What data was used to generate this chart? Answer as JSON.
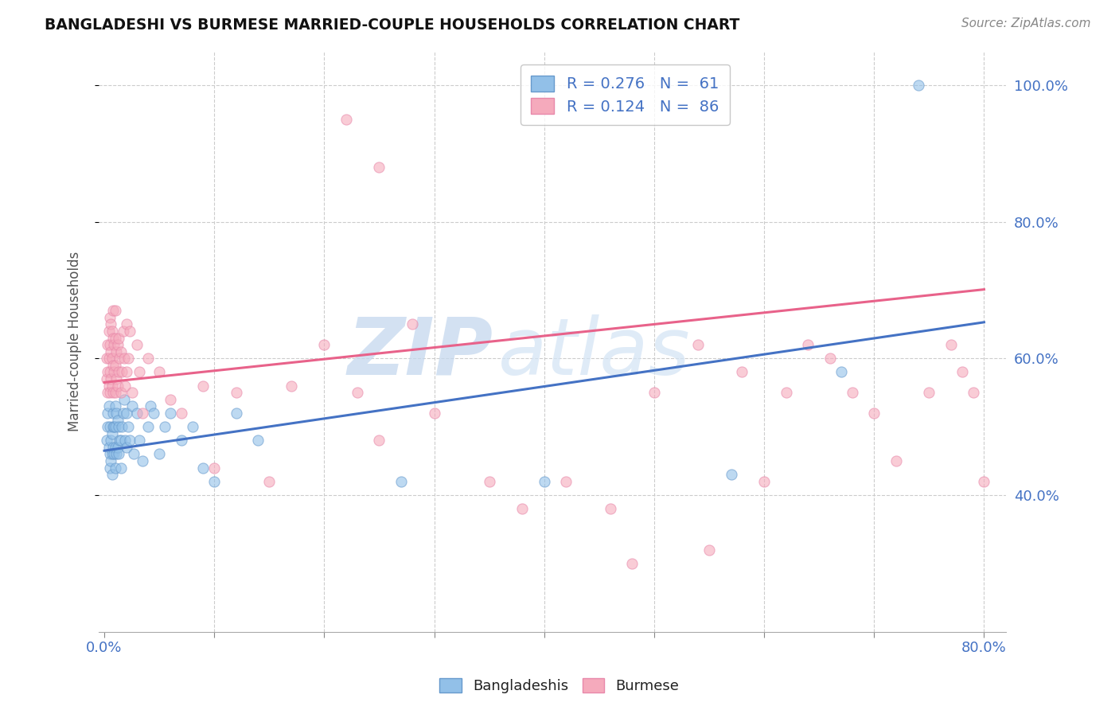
{
  "title": "BANGLADESHI VS BURMESE MARRIED-COUPLE HOUSEHOLDS CORRELATION CHART",
  "source": "Source: ZipAtlas.com",
  "ylabel": "Married-couple Households",
  "xlim": [
    -0.005,
    0.82
  ],
  "ylim": [
    0.2,
    1.05
  ],
  "blue_color": "#92C0E8",
  "blue_edge": "#6699CC",
  "pink_color": "#F5AABC",
  "pink_edge": "#E888AA",
  "line_blue": "#4472C4",
  "line_pink": "#E8628A",
  "grid_color": "#CCCCCC",
  "tick_color": "#4472C4",
  "ylabel_color": "#555555",
  "title_color": "#111111",
  "source_color": "#888888",
  "watermark_zip_color": "#C5D8EE",
  "watermark_atlas_color": "#D5E5F5",
  "blue_line_intercept": 0.465,
  "blue_line_slope": 0.235,
  "pink_line_intercept": 0.565,
  "pink_line_slope": 0.17,
  "blue_x": [
    0.002,
    0.003,
    0.003,
    0.004,
    0.004,
    0.005,
    0.005,
    0.005,
    0.006,
    0.006,
    0.007,
    0.007,
    0.007,
    0.008,
    0.008,
    0.008,
    0.009,
    0.009,
    0.01,
    0.01,
    0.01,
    0.01,
    0.011,
    0.011,
    0.012,
    0.012,
    0.013,
    0.013,
    0.014,
    0.015,
    0.015,
    0.016,
    0.017,
    0.018,
    0.019,
    0.02,
    0.02,
    0.022,
    0.023,
    0.025,
    0.027,
    0.03,
    0.032,
    0.035,
    0.04,
    0.042,
    0.045,
    0.05,
    0.055,
    0.06,
    0.07,
    0.08,
    0.09,
    0.1,
    0.12,
    0.14,
    0.27,
    0.4,
    0.57,
    0.67,
    0.74
  ],
  "blue_y": [
    0.48,
    0.5,
    0.52,
    0.47,
    0.53,
    0.44,
    0.46,
    0.5,
    0.45,
    0.48,
    0.43,
    0.46,
    0.49,
    0.47,
    0.5,
    0.52,
    0.46,
    0.5,
    0.44,
    0.47,
    0.5,
    0.53,
    0.46,
    0.52,
    0.47,
    0.51,
    0.46,
    0.5,
    0.48,
    0.44,
    0.48,
    0.5,
    0.52,
    0.54,
    0.48,
    0.47,
    0.52,
    0.5,
    0.48,
    0.53,
    0.46,
    0.52,
    0.48,
    0.45,
    0.5,
    0.53,
    0.52,
    0.46,
    0.5,
    0.52,
    0.48,
    0.5,
    0.44,
    0.42,
    0.52,
    0.48,
    0.42,
    0.42,
    0.43,
    0.58,
    1.0
  ],
  "pink_x": [
    0.002,
    0.002,
    0.003,
    0.003,
    0.003,
    0.004,
    0.004,
    0.004,
    0.005,
    0.005,
    0.005,
    0.005,
    0.006,
    0.006,
    0.006,
    0.007,
    0.007,
    0.007,
    0.008,
    0.008,
    0.008,
    0.008,
    0.009,
    0.009,
    0.01,
    0.01,
    0.01,
    0.01,
    0.011,
    0.011,
    0.012,
    0.012,
    0.013,
    0.013,
    0.014,
    0.015,
    0.015,
    0.016,
    0.017,
    0.018,
    0.019,
    0.02,
    0.02,
    0.022,
    0.023,
    0.025,
    0.03,
    0.032,
    0.035,
    0.04,
    0.05,
    0.06,
    0.07,
    0.09,
    0.1,
    0.12,
    0.15,
    0.17,
    0.2,
    0.23,
    0.25,
    0.28,
    0.3,
    0.35,
    0.38,
    0.42,
    0.46,
    0.5,
    0.54,
    0.58,
    0.6,
    0.62,
    0.64,
    0.66,
    0.68,
    0.7,
    0.72,
    0.75,
    0.77,
    0.78,
    0.79,
    0.8,
    0.25,
    0.22,
    0.48,
    0.55
  ],
  "pink_y": [
    0.57,
    0.6,
    0.55,
    0.58,
    0.62,
    0.56,
    0.6,
    0.64,
    0.55,
    0.58,
    0.62,
    0.66,
    0.57,
    0.61,
    0.65,
    0.56,
    0.6,
    0.64,
    0.55,
    0.59,
    0.63,
    0.67,
    0.58,
    0.62,
    0.55,
    0.59,
    0.63,
    0.67,
    0.57,
    0.61,
    0.56,
    0.62,
    0.58,
    0.63,
    0.6,
    0.55,
    0.61,
    0.58,
    0.64,
    0.6,
    0.56,
    0.58,
    0.65,
    0.6,
    0.64,
    0.55,
    0.62,
    0.58,
    0.52,
    0.6,
    0.58,
    0.54,
    0.52,
    0.56,
    0.44,
    0.55,
    0.42,
    0.56,
    0.62,
    0.55,
    0.48,
    0.65,
    0.52,
    0.42,
    0.38,
    0.42,
    0.38,
    0.55,
    0.62,
    0.58,
    0.42,
    0.55,
    0.62,
    0.6,
    0.55,
    0.52,
    0.45,
    0.55,
    0.62,
    0.58,
    0.55,
    0.42,
    0.88,
    0.95,
    0.3,
    0.32
  ]
}
